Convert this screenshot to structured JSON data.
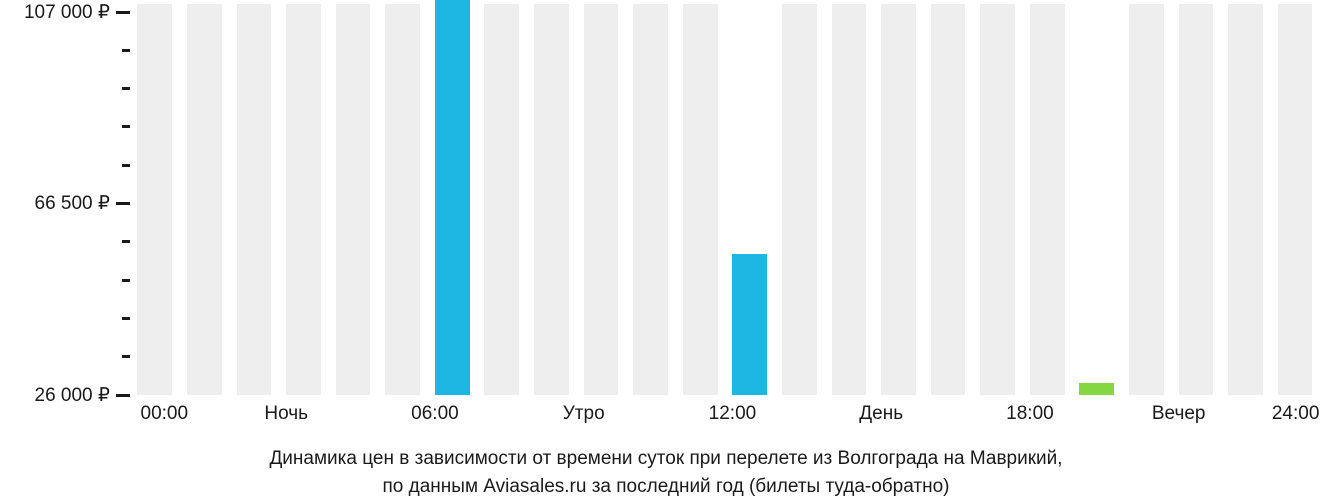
{
  "chart": {
    "type": "bar",
    "background_color": "#ffffff",
    "empty_bar_color": "#eeeeee",
    "data_bar_color": "#1eb6e2",
    "data_bar_color_alt": "#84d742",
    "tick_color": "#1a1a1a",
    "text_color": "#1a1a1a",
    "caption_color": "#1a1a1a",
    "label_fontsize": 19,
    "y_min": 26000,
    "y_max": 107000,
    "y_ticks": [
      {
        "value": 107000,
        "label": "107 000 ₽",
        "major": true
      },
      {
        "value": 98900,
        "label": "",
        "major": false
      },
      {
        "value": 90800,
        "label": "",
        "major": false
      },
      {
        "value": 82700,
        "label": "",
        "major": false
      },
      {
        "value": 74600,
        "label": "",
        "major": false
      },
      {
        "value": 66500,
        "label": "66 500 ₽",
        "major": true
      },
      {
        "value": 58400,
        "label": "",
        "major": false
      },
      {
        "value": 50300,
        "label": "",
        "major": false
      },
      {
        "value": 42200,
        "label": "",
        "major": false
      },
      {
        "value": 34100,
        "label": "",
        "major": false
      },
      {
        "value": 26000,
        "label": "26 000 ₽",
        "major": true
      }
    ],
    "placeholder_bar_height_pct": 99,
    "bars": [
      {
        "hour": 0,
        "value": null
      },
      {
        "hour": 1,
        "value": null
      },
      {
        "hour": 2,
        "value": null
      },
      {
        "hour": 3,
        "value": null
      },
      {
        "hour": 4,
        "value": null
      },
      {
        "hour": 5,
        "value": null
      },
      {
        "hour": 6,
        "value": 108000,
        "color": "#1eb6e2"
      },
      {
        "hour": 7,
        "value": null
      },
      {
        "hour": 8,
        "value": null
      },
      {
        "hour": 9,
        "value": null
      },
      {
        "hour": 10,
        "value": null
      },
      {
        "hour": 11,
        "value": null
      },
      {
        "hour": 12,
        "value": 55000,
        "color": "#1eb6e2"
      },
      {
        "hour": 13,
        "value": null
      },
      {
        "hour": 14,
        "value": null
      },
      {
        "hour": 15,
        "value": null
      },
      {
        "hour": 16,
        "value": null
      },
      {
        "hour": 17,
        "value": null
      },
      {
        "hour": 18,
        "value": null
      },
      {
        "hour": 19,
        "value": 26500,
        "color": "#84d742"
      },
      {
        "hour": 20,
        "value": null
      },
      {
        "hour": 21,
        "value": null
      },
      {
        "hour": 22,
        "value": null
      },
      {
        "hour": 23,
        "value": null
      }
    ],
    "x_labels": [
      {
        "pos_hour": 0,
        "text": "00:00"
      },
      {
        "pos_hour": 3,
        "text": "Ночь"
      },
      {
        "pos_hour": 6,
        "text": "06:00"
      },
      {
        "pos_hour": 9,
        "text": "Утро"
      },
      {
        "pos_hour": 12,
        "text": "12:00"
      },
      {
        "pos_hour": 15,
        "text": "День"
      },
      {
        "pos_hour": 18,
        "text": "18:00"
      },
      {
        "pos_hour": 21,
        "text": "Вечер"
      },
      {
        "pos_hour": 24,
        "text": "24:00"
      }
    ],
    "caption_line1": "Динамика цен в зависимости от времени суток при перелете из Волгограда на Маврикий,",
    "caption_line2": "по данным Aviasales.ru за последний год (билеты туда-обратно)"
  }
}
